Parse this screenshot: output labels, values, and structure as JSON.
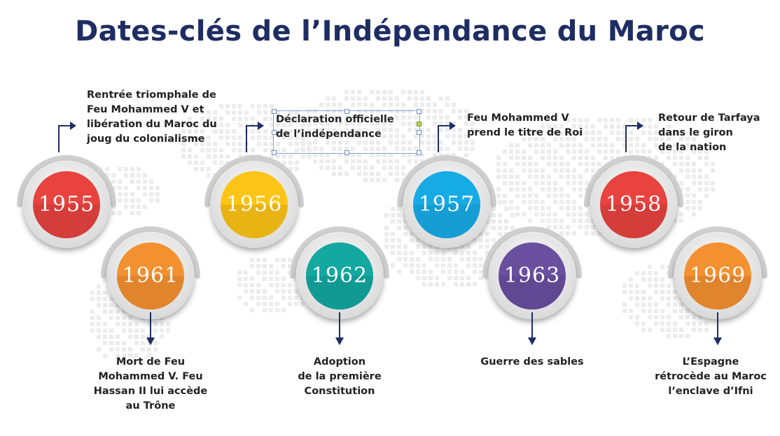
{
  "title": "Dates-clés de l’Indépendance du Maroc",
  "colors": {
    "title": "#1e2d62",
    "arrow": "#1e2d62"
  },
  "events": [
    {
      "year": "1955",
      "color": "#e8433f",
      "text": "Rentrée triomphale de\nFeu Mohammed V et\nlibération du Maroc du\njoug du colonialisme"
    },
    {
      "year": "1956",
      "color": "#fcc416",
      "text": "Déclaration officielle\nde l’indépendance"
    },
    {
      "year": "1957",
      "color": "#17abe6",
      "text": "Feu Mohammed V\nprend le titre de Roi"
    },
    {
      "year": "1958",
      "color": "#e8433f",
      "text": "Retour de Tarfaya\ndans le giron\nde la nation"
    },
    {
      "year": "1961",
      "color": "#f39130",
      "text": "Mort de Feu\nMohammed V. Feu\nHassan II lui accède\nau Trône"
    },
    {
      "year": "1962",
      "color": "#13a8a0",
      "text": "Adoption\nde la première\nConstitution"
    },
    {
      "year": "1963",
      "color": "#6a4f9f",
      "text": "Guerre des sables"
    },
    {
      "year": "1969",
      "color": "#f39130",
      "text": "L’Espagne\nrétrocède au Maroc\nl’enclave d’Ifni"
    }
  ]
}
